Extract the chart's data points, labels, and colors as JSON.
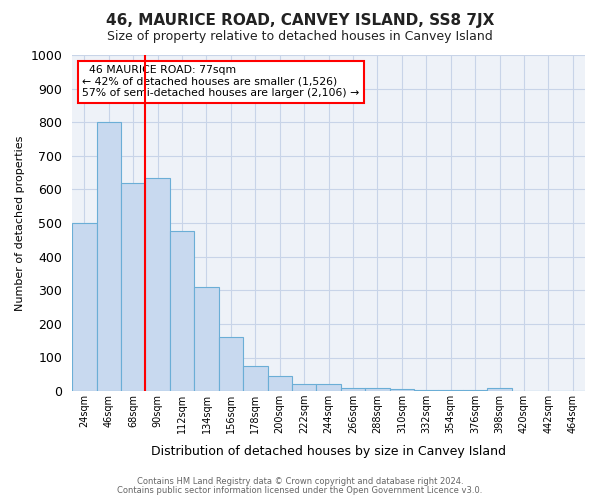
{
  "title": "46, MAURICE ROAD, CANVEY ISLAND, SS8 7JX",
  "subtitle": "Size of property relative to detached houses in Canvey Island",
  "xlabel": "Distribution of detached houses by size in Canvey Island",
  "ylabel": "Number of detached properties",
  "footnote1": "Contains HM Land Registry data © Crown copyright and database right 2024.",
  "footnote2": "Contains public sector information licensed under the Open Government Licence v3.0.",
  "annotation_line1": "46 MAURICE ROAD: 77sqm",
  "annotation_line2": "← 42% of detached houses are smaller (1,526)",
  "annotation_line3": "57% of semi-detached houses are larger (2,106) →",
  "bar_color": "#c8d9ef",
  "bar_edge_color": "#6baed6",
  "red_line_x": 3,
  "ylim": [
    0,
    1000
  ],
  "categories": [
    "24sqm",
    "46sqm",
    "68sqm",
    "90sqm",
    "112sqm",
    "134sqm",
    "156sqm",
    "178sqm",
    "200sqm",
    "222sqm",
    "244sqm",
    "266sqm",
    "288sqm",
    "310sqm",
    "332sqm",
    "354sqm",
    "376sqm",
    "398sqm",
    "420sqm",
    "442sqm",
    "464sqm"
  ],
  "values": [
    500,
    800,
    620,
    635,
    475,
    310,
    160,
    75,
    45,
    22,
    20,
    10,
    8,
    5,
    3,
    2,
    2,
    8,
    0,
    0,
    0
  ],
  "annotation_box_color": "white",
  "annotation_box_edge": "red",
  "grid_color": "#c8d4e8",
  "bg_color": "#ffffff",
  "title_fontsize": 11,
  "subtitle_fontsize": 9
}
